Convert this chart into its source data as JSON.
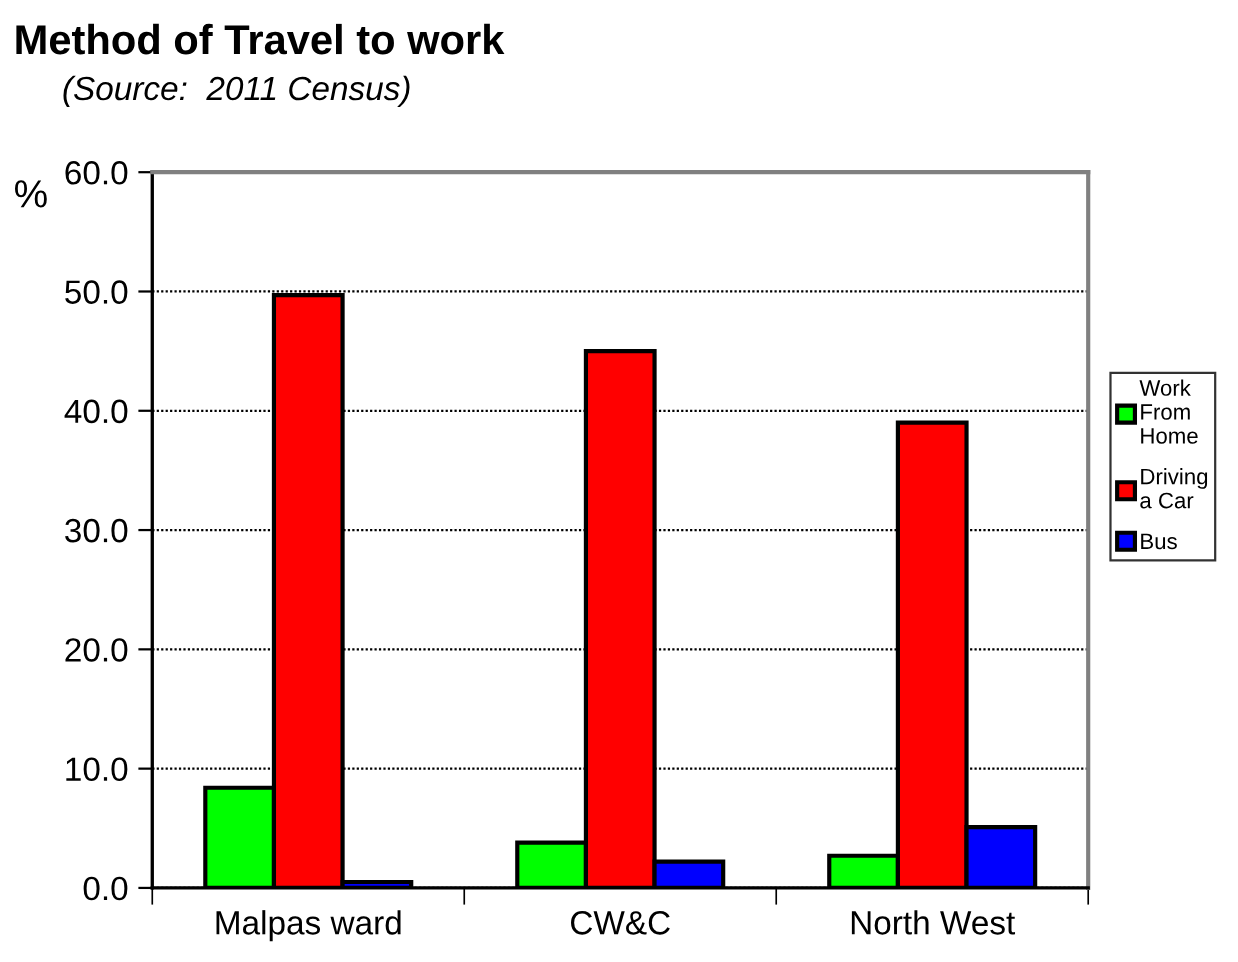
{
  "chart_data": {
    "type": "bar",
    "title": "Method of Travel to work",
    "annotations": [
      "(Source:  2011 Census)"
    ],
    "ylabel": "%",
    "categories": [
      "Malpas ward",
      "CW&C",
      "North West"
    ],
    "series": [
      {
        "name": "Work From Home",
        "color": "#00ff00",
        "values": [
          8.4,
          3.8,
          2.7
        ]
      },
      {
        "name": "Driving a Car",
        "color": "#ff0000",
        "values": [
          49.7,
          45.0,
          39.0
        ]
      },
      {
        "name": "Bus",
        "color": "#0000ff",
        "values": [
          0.5,
          2.2,
          5.1
        ]
      }
    ],
    "ylim": [
      0,
      60
    ],
    "yticks": [
      {
        "value": 0,
        "label": "0.0"
      },
      {
        "value": 10,
        "label": "10.0"
      },
      {
        "value": 20,
        "label": "20.0"
      },
      {
        "value": 30,
        "label": "30.0"
      },
      {
        "value": 40,
        "label": "40.0"
      },
      {
        "value": 50,
        "label": "50.0"
      },
      {
        "value": 60,
        "label": "60.0"
      }
    ],
    "grid": "y",
    "legend": "right"
  }
}
